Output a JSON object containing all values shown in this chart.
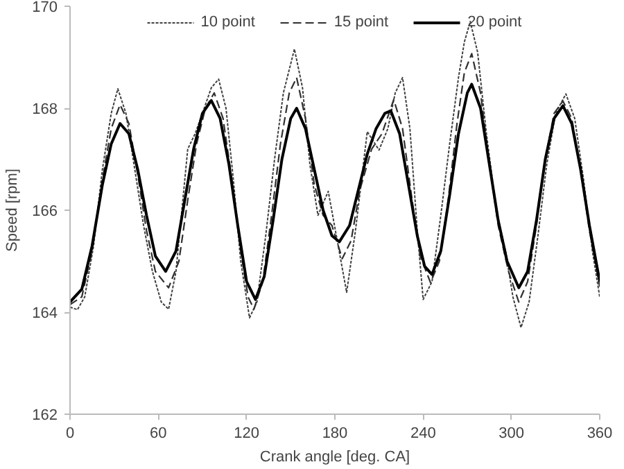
{
  "chart_data": {
    "type": "line",
    "xlabel": "Crank angle [deg. CA]",
    "ylabel": "Speed [rpm]",
    "xlim": [
      0,
      360
    ],
    "xticks": [
      0,
      60,
      120,
      180,
      240,
      300,
      360
    ],
    "ylim": [
      162,
      170
    ],
    "yticks": [
      162,
      164,
      166,
      168,
      170
    ],
    "grid": false,
    "legend": "top",
    "marker": "none",
    "series": [
      {
        "name": "10 point",
        "color": "#404040",
        "line_style": "dotted",
        "x": [
          0,
          5,
          10,
          16,
          22,
          28,
          32.5,
          38,
          44,
          50,
          56,
          62,
          67,
          72,
          77,
          80,
          85,
          90,
          96,
          101,
          106,
          111,
          116,
          122,
          127,
          133,
          139,
          145,
          152.5,
          158,
          163,
          168.5,
          175.5,
          181,
          188,
          194,
          202,
          210,
          216,
          221,
          226,
          231,
          236,
          240,
          246,
          252,
          258,
          264,
          268,
          272,
          277,
          283,
          290,
          296,
          301,
          306.5,
          312,
          318,
          324,
          330,
          337,
          343,
          349,
          355,
          360
        ],
        "values": [
          164.1,
          164.05,
          164.3,
          165.3,
          166.8,
          167.9,
          168.38,
          167.9,
          166.8,
          165.7,
          164.8,
          164.2,
          164.06,
          164.8,
          166.3,
          167.2,
          167.5,
          167.9,
          168.4,
          168.57,
          168.0,
          166.6,
          165.0,
          163.89,
          164.2,
          165.5,
          167.0,
          168.3,
          169.16,
          168.4,
          166.9,
          165.9,
          166.37,
          165.5,
          164.39,
          165.6,
          167.54,
          167.18,
          167.6,
          168.3,
          168.6,
          167.6,
          165.6,
          164.25,
          164.6,
          165.9,
          167.3,
          168.6,
          169.3,
          169.7,
          169.1,
          167.5,
          165.95,
          165.2,
          164.3,
          163.7,
          164.2,
          165.5,
          166.9,
          167.9,
          168.28,
          167.8,
          166.6,
          165.2,
          164.3
        ]
      },
      {
        "name": "15 point",
        "color": "#303030",
        "line_style": "dashed",
        "x": [
          0,
          8,
          15,
          22,
          28,
          34,
          40,
          46,
          52,
          58,
          67,
          74,
          80,
          86,
          92,
          98,
          104,
          110,
          116,
          121,
          125,
          131,
          137,
          143,
          149,
          154,
          160,
          166,
          172,
          178,
          185,
          191,
          197,
          205,
          212,
          220,
          226,
          232,
          238,
          245,
          251,
          257,
          263,
          268,
          273,
          279,
          285,
          291,
          298,
          305,
          311,
          317,
          323,
          329,
          335,
          341,
          347,
          353,
          360
        ],
        "values": [
          164.15,
          164.3,
          165.2,
          166.6,
          167.6,
          168.07,
          167.7,
          166.7,
          165.6,
          164.8,
          164.48,
          165.0,
          166.2,
          167.3,
          168.0,
          168.3,
          167.8,
          166.6,
          165.2,
          164.3,
          164.06,
          164.6,
          165.9,
          167.3,
          168.3,
          168.6,
          167.8,
          166.5,
          165.9,
          165.7,
          165.05,
          165.4,
          166.4,
          167.2,
          167.5,
          168.17,
          167.6,
          166.3,
          165.1,
          164.58,
          165.0,
          166.2,
          167.7,
          168.7,
          169.07,
          168.3,
          166.9,
          165.7,
          164.8,
          164.2,
          164.6,
          165.7,
          167.0,
          167.9,
          168.14,
          167.8,
          166.8,
          165.6,
          164.5
        ]
      },
      {
        "name": "20 point",
        "color": "#000000",
        "line_style": "solid",
        "x": [
          0,
          8,
          15,
          22,
          28,
          34,
          40,
          46,
          52,
          58,
          65,
          72,
          78,
          84,
          90,
          96,
          102,
          108,
          114,
          120,
          126,
          132,
          138,
          144,
          150,
          154,
          160,
          166,
          172,
          178,
          183,
          190,
          196,
          202,
          208,
          214,
          218,
          224,
          230,
          236,
          241,
          246,
          252,
          258,
          264,
          270,
          273,
          279,
          285,
          291,
          297,
          305,
          311,
          317,
          323,
          329,
          335,
          341,
          347,
          353,
          360
        ],
        "values": [
          164.2,
          164.45,
          165.3,
          166.5,
          167.3,
          167.7,
          167.5,
          166.8,
          165.9,
          165.1,
          164.8,
          165.2,
          166.2,
          167.2,
          167.9,
          168.15,
          167.8,
          166.9,
          165.7,
          164.6,
          164.25,
          164.7,
          165.8,
          167.0,
          167.8,
          168.0,
          167.6,
          166.8,
          166.0,
          165.5,
          165.38,
          165.7,
          166.4,
          167.1,
          167.6,
          167.9,
          167.95,
          167.5,
          166.5,
          165.5,
          164.9,
          164.74,
          165.2,
          166.3,
          167.5,
          168.3,
          168.47,
          168.0,
          166.9,
          165.8,
          165.0,
          164.48,
          164.8,
          165.8,
          167.0,
          167.8,
          168.05,
          167.7,
          166.8,
          165.7,
          164.6
        ]
      }
    ]
  }
}
